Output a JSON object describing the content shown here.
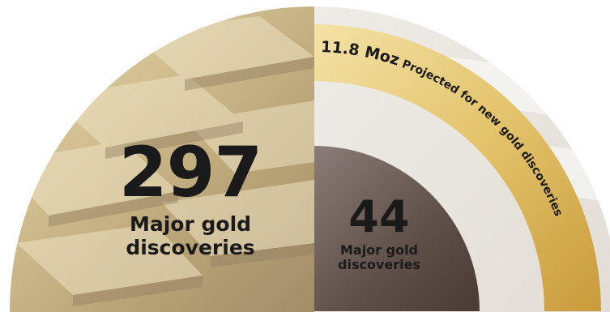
{
  "colors": {
    "gold_light": "#f2d98a",
    "gold_mid": "#d9b452",
    "gold_dark": "#b38a2e",
    "brown_dark": "#574740",
    "text": "#1a1a1a"
  },
  "left_stat": {
    "value": "297",
    "label_line1": "Major gold",
    "label_line2": "discoveries"
  },
  "right_stat": {
    "value": "44",
    "label_line1": "Major gold",
    "label_line2": "discoveries"
  },
  "arc_label": {
    "value": "11.8 Moz",
    "text": " Projected for new gold discoveries"
  }
}
